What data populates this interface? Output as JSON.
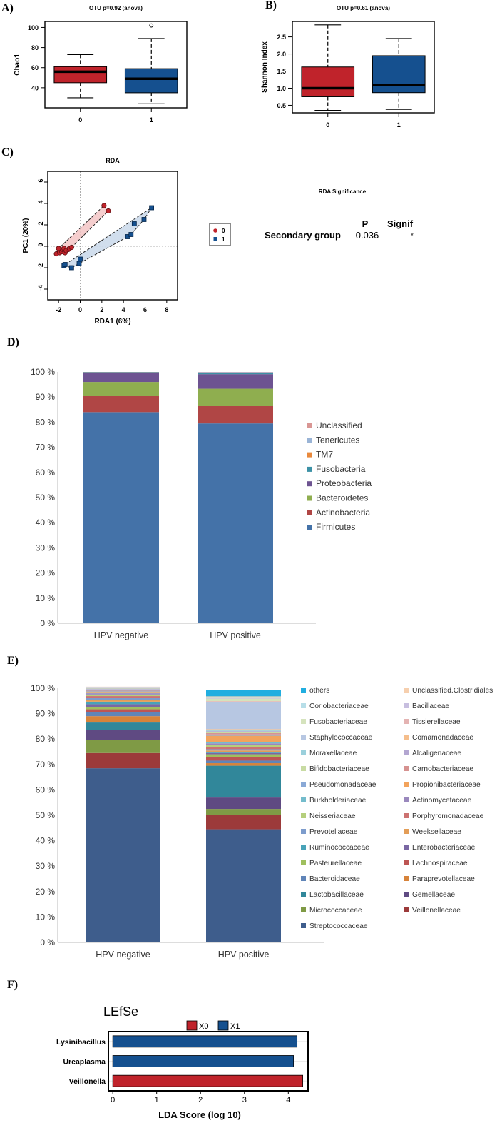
{
  "panels": {
    "A": "A)",
    "B": "B)",
    "C": "C)",
    "D": "D)",
    "E": "E)",
    "F": "F)"
  },
  "colors": {
    "red": "#c0232b",
    "blue": "#15508f",
    "rda_red_fill": "#f3c6c6",
    "rda_blue_fill": "#c9d8ea"
  },
  "chart_data": [
    {
      "id": "A",
      "type": "box",
      "title": "OTU p=0.92 (anova)",
      "ylabel": "Chao1",
      "xlabel": "",
      "ylim": [
        20,
        106
      ],
      "yticks": [
        40,
        60,
        80,
        100
      ],
      "categories": [
        "0",
        "1"
      ],
      "boxes": [
        {
          "name": "0",
          "min": 30,
          "q1": 45,
          "median": 56,
          "q3": 61,
          "max": 73,
          "outliers": [],
          "color": "#c0232b"
        },
        {
          "name": "1",
          "min": 24,
          "q1": 35,
          "median": 49,
          "q3": 59,
          "max": 89,
          "outliers": [
            102
          ],
          "color": "#15508f"
        }
      ]
    },
    {
      "id": "B",
      "type": "box",
      "title": "OTU p=0.61 (anova)",
      "ylabel": "Shannon Index",
      "xlabel": "",
      "ylim": [
        0.28,
        2.95
      ],
      "yticks": [
        0.5,
        1.0,
        1.5,
        2.0,
        2.5
      ],
      "categories": [
        "0",
        "1"
      ],
      "boxes": [
        {
          "name": "0",
          "min": 0.35,
          "q1": 0.75,
          "median": 1.0,
          "q3": 1.62,
          "max": 2.85,
          "outliers": [],
          "color": "#c0232b"
        },
        {
          "name": "1",
          "min": 0.38,
          "q1": 0.87,
          "median": 1.1,
          "q3": 1.95,
          "max": 2.45,
          "outliers": [],
          "color": "#15508f"
        }
      ]
    },
    {
      "id": "C",
      "type": "scatter",
      "title": "RDA",
      "xlabel": "RDA1 (6%)",
      "ylabel": "PC1 (20%)",
      "xlim": [
        -3,
        9
      ],
      "ylim": [
        -5,
        7
      ],
      "xticks": [
        -2,
        0,
        2,
        4,
        6,
        8
      ],
      "yticks": [
        -4,
        -2,
        0,
        2,
        4,
        6
      ],
      "legend": [
        "0",
        "1"
      ],
      "series": [
        {
          "name": "0",
          "marker": "circle",
          "color": "#c0232b",
          "points": [
            [
              -2.2,
              -0.7
            ],
            [
              -2.0,
              -0.2
            ],
            [
              -1.9,
              -0.6
            ],
            [
              -1.7,
              -0.5
            ],
            [
              -1.6,
              -0.3
            ],
            [
              -1.5,
              -0.2
            ],
            [
              -1.4,
              -0.6
            ],
            [
              -1.3,
              -0.4
            ],
            [
              -1.1,
              -0.3
            ],
            [
              -1.0,
              -0.2
            ],
            [
              -0.8,
              -0.1
            ],
            [
              2.2,
              3.8
            ],
            [
              2.6,
              3.3
            ]
          ]
        },
        {
          "name": "1",
          "marker": "square",
          "color": "#15508f",
          "points": [
            [
              -1.5,
              -1.8
            ],
            [
              -1.4,
              -1.7
            ],
            [
              -0.8,
              -2.0
            ],
            [
              -0.1,
              -1.6
            ],
            [
              0.0,
              -1.2
            ],
            [
              4.4,
              0.9
            ],
            [
              4.7,
              1.1
            ],
            [
              5.0,
              2.1
            ],
            [
              5.9,
              2.5
            ],
            [
              6.6,
              3.6
            ]
          ]
        }
      ],
      "significance": {
        "title": "RDA Significance",
        "header_p": "P",
        "header_signif": "Signif",
        "row_label": "Secondary group",
        "p_value": "0.036",
        "signif": "*"
      }
    },
    {
      "id": "D",
      "type": "stacked-bar",
      "yticks": [
        "0 %",
        "10 %",
        "20 %",
        "30 %",
        "40 %",
        "50 %",
        "60 %",
        "70 %",
        "80 %",
        "90 %",
        "100 %"
      ],
      "categories": [
        "HPV negative",
        "HPV positive"
      ],
      "series": [
        {
          "name": "Firmicutes",
          "color": "#4472a8",
          "values": [
            84,
            79.5
          ]
        },
        {
          "name": "Actinobacteria",
          "color": "#b04645",
          "values": [
            6.5,
            7
          ]
        },
        {
          "name": "Bacteroidetes",
          "color": "#8fae4f",
          "values": [
            5.5,
            6.8
          ]
        },
        {
          "name": "Proteobacteria",
          "color": "#6d5391",
          "values": [
            3.7,
            5.8
          ]
        },
        {
          "name": "Fusobacteria",
          "color": "#3c91a6",
          "values": [
            0.2,
            0.4
          ]
        },
        {
          "name": "TM7",
          "color": "#e9893c",
          "values": [
            0.05,
            0.1
          ]
        },
        {
          "name": "Tenericutes",
          "color": "#9ab4d6",
          "values": [
            0.03,
            0.3
          ]
        },
        {
          "name": "Unclassified",
          "color": "#d99694",
          "values": [
            0.02,
            0.1
          ]
        }
      ],
      "legend_order": [
        "Unclassified",
        "Tenericutes",
        "TM7",
        "Fusobacteria",
        "Proteobacteria",
        "Bacteroidetes",
        "Actinobacteria",
        "Firmicutes"
      ]
    },
    {
      "id": "E",
      "type": "stacked-bar",
      "yticks": [
        "0 %",
        "10 %",
        "20 %",
        "30 %",
        "40 %",
        "50 %",
        "60 %",
        "70 %",
        "80 %",
        "90 %",
        "100 %"
      ],
      "categories": [
        "HPV negative",
        "HPV positive"
      ],
      "series": [
        {
          "name": "Streptococcaceae",
          "color": "#3e5d8c",
          "values": [
            68.5,
            44.5
          ]
        },
        {
          "name": "Veillonellaceae",
          "color": "#9c3a3a",
          "values": [
            6,
            5.5
          ]
        },
        {
          "name": "Micrococcaceae",
          "color": "#7f9a45",
          "values": [
            5,
            2.5
          ]
        },
        {
          "name": "Gemellaceae",
          "color": "#5f4a82",
          "values": [
            4,
            4.5
          ]
        },
        {
          "name": "Lactobacillaceae",
          "color": "#31879a",
          "values": [
            3,
            12.5
          ]
        },
        {
          "name": "Paraprevotellaceae",
          "color": "#d7833a",
          "values": [
            2.5,
            1
          ]
        },
        {
          "name": "Bacteroidaceae",
          "color": "#6085b8",
          "values": [
            1.5,
            1
          ]
        },
        {
          "name": "Lachnospiraceae",
          "color": "#bd5553",
          "values": [
            1.2,
            1.5
          ]
        },
        {
          "name": "Pasteurellaceae",
          "color": "#9fbf5e",
          "values": [
            1,
            1
          ]
        },
        {
          "name": "Enterobacteriaceae",
          "color": "#7a67a3",
          "values": [
            1,
            0.5
          ]
        },
        {
          "name": "Ruminococcaceae",
          "color": "#49a3b8",
          "values": [
            1,
            0.5
          ]
        },
        {
          "name": "Weeksellaceae",
          "color": "#e39d57",
          "values": [
            0.8,
            0.5
          ]
        },
        {
          "name": "Prevotellaceae",
          "color": "#7d9ccc",
          "values": [
            0.8,
            0.5
          ]
        },
        {
          "name": "Porphyromonadaceae",
          "color": "#cc7271",
          "values": [
            0.6,
            0.8
          ]
        },
        {
          "name": "Neisseriaceae",
          "color": "#b5cf7c",
          "values": [
            0.6,
            1
          ]
        },
        {
          "name": "Actinomycetaceae",
          "color": "#9a88bd",
          "values": [
            0.5,
            0.5
          ]
        },
        {
          "name": "Burkholderiaceae",
          "color": "#74bccc",
          "values": [
            0.4,
            0.5
          ]
        },
        {
          "name": "Propionibacteriaceae",
          "color": "#f2a35c",
          "values": [
            0.3,
            2.5
          ]
        },
        {
          "name": "Pseudomonadaceae",
          "color": "#8aa9d6",
          "values": [
            0.3,
            0.5
          ]
        },
        {
          "name": "Carnobacteriaceae",
          "color": "#d69290",
          "values": [
            0.3,
            0.5
          ]
        },
        {
          "name": "Bifidobacteriaceae",
          "color": "#c8dba3",
          "values": [
            0.2,
            0.5
          ]
        },
        {
          "name": "Alcaligenaceae",
          "color": "#b3a6d1",
          "values": [
            0.2,
            0.3
          ]
        },
        {
          "name": "Moraxellaceae",
          "color": "#9bd0dc",
          "values": [
            0.2,
            0.3
          ]
        },
        {
          "name": "Comamonadaceae",
          "color": "#f5be8c",
          "values": [
            0.1,
            0.5
          ]
        },
        {
          "name": "Staphylococcaceae",
          "color": "#b7c7e2",
          "values": [
            0.1,
            10.5
          ]
        },
        {
          "name": "Tissierellaceae",
          "color": "#e4b3b2",
          "values": [
            0.1,
            0.5
          ]
        },
        {
          "name": "Fusobacteriaceae",
          "color": "#d5e3bd",
          "values": [
            0.1,
            1
          ]
        },
        {
          "name": "Bacillaceae",
          "color": "#c7bedf",
          "values": [
            0.1,
            0.3
          ]
        },
        {
          "name": "Coriobacteriaceae",
          "color": "#b7dee8",
          "values": [
            0.1,
            0.3
          ]
        },
        {
          "name": "Unclassified.Clostridiales",
          "color": "#f6cfae",
          "values": [
            0.1,
            0.3
          ]
        },
        {
          "name": "others",
          "color": "#21aee0",
          "values": [
            0,
            2.5
          ]
        }
      ],
      "legend_left": [
        "others",
        "Coriobacteriaceae",
        "Fusobacteriaceae",
        "Staphylococcaceae",
        "Moraxellaceae",
        "Bifidobacteriaceae",
        "Pseudomonadaceae",
        "Burkholderiaceae",
        "Neisseriaceae",
        "Prevotellaceae",
        "Ruminococcaceae",
        "Pasteurellaceae",
        "Bacteroidaceae",
        "Lactobacillaceae",
        "Micrococcaceae",
        "Streptococcaceae"
      ],
      "legend_right": [
        "Unclassified.Clostridiales",
        "Bacillaceae",
        "Tissierellaceae",
        "Comamonadaceae",
        "Alcaligenaceae",
        "Carnobacteriaceae",
        "Propionibacteriaceae",
        "Actinomycetaceae",
        "Porphyromonadaceae",
        "Weeksellaceae",
        "Enterobacteriaceae",
        "Lachnospiraceae",
        "Paraprevotellaceae",
        "Gemellaceae",
        "Veillonellaceae"
      ]
    },
    {
      "id": "F",
      "type": "bar",
      "orientation": "horizontal",
      "title": "LEfSe",
      "xlabel": "LDA Score (log 10)",
      "xlim": [
        -0.1,
        4.45
      ],
      "xticks": [
        0,
        1,
        2,
        3,
        4
      ],
      "legend": [
        {
          "name": "X0",
          "color": "#c0232b"
        },
        {
          "name": "X1",
          "color": "#15508f"
        }
      ],
      "categories": [
        "Lysinibacillus",
        "Ureaplasma",
        "Veillonella"
      ],
      "values": [
        4.2,
        4.12,
        4.33
      ],
      "groups": [
        "X1",
        "X1",
        "X0"
      ]
    }
  ]
}
